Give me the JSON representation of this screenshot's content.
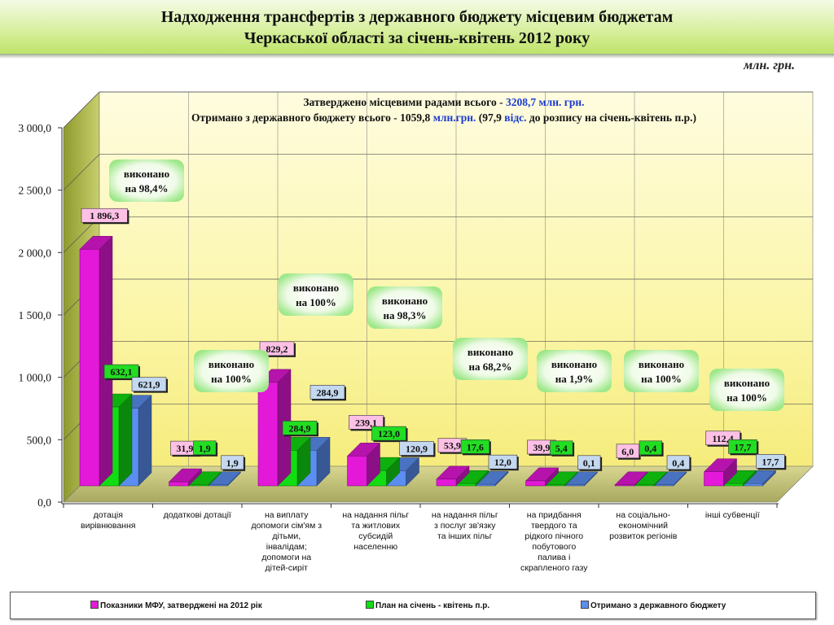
{
  "title": {
    "line1": "Надходження трансфертів з державного бюджету місцевим бюджетам",
    "line2": "Черкаської області за січень-квітень  2012 року"
  },
  "unit": "млн. грн.",
  "colors": {
    "mfu": "#e418d8",
    "plan": "#12dc12",
    "received": "#5b8ef0",
    "panel_back": "#fbf6a8",
    "label_box_mfu": "#ffc0e6",
    "label_box_plan": "#22dd22",
    "label_box_received": "#c4d8f0",
    "text_highlight": "#1a3ad0"
  },
  "info_box": {
    "line1_a": "Затверджено місцевими радами всього - ",
    "line1_b": "3208,7 млн. грн.",
    "line2_a": "Отримано  з державного бюджету всього - 1059,8 ",
    "line2_b": "млн.грн.",
    "line2_c": " (97,9 ",
    "line2_d": "відс.",
    "line2_e": " до розпису на січень-квітень п.р.)"
  },
  "chart_data": {
    "type": "bar",
    "ylim": [
      0,
      3000
    ],
    "yticks": [
      "0,0",
      "500,0",
      "1 000,0",
      "1 500,0",
      "2 000,0",
      "2 500,0",
      "3 000,0"
    ],
    "ytick_values": [
      0,
      500,
      1000,
      1500,
      2000,
      2500,
      3000
    ],
    "grid": true,
    "legend_position": "bottom",
    "categories": [
      [
        "дотація",
        "вирівнювання"
      ],
      [
        "додаткові дотації"
      ],
      [
        "на виплату",
        "допомоги сім'ям з",
        "дітьми,",
        "інвалідам;",
        "допомоги на",
        "дітей-сиріт"
      ],
      [
        "на надання пільг",
        "та житлових",
        "субсидій",
        "населенню"
      ],
      [
        "на надання пільг",
        "з послуг зв'язку",
        "та інших  пільг"
      ],
      [
        "на придбання",
        "твердого та",
        "рідкого пічного",
        "побутового",
        "палива і",
        "скрапленого газу"
      ],
      [
        "на соціально-",
        "економічний",
        "розвиток регіонів"
      ],
      [
        "інші  субвенції"
      ]
    ],
    "series": [
      {
        "name": "Показники МФУ, затверджені на 2012 рік",
        "values": [
          1896.3,
          31.9,
          829.2,
          239.1,
          53.9,
          39.9,
          6.0,
          112.4
        ],
        "labels": [
          "1 896,3",
          "31,9",
          "829,2",
          "239,1",
          "53,9",
          "39,9",
          "6,0",
          "112,4"
        ]
      },
      {
        "name": "План на січень - квітень п.р.",
        "values": [
          632.1,
          1.9,
          284.9,
          123.0,
          17.6,
          5.4,
          0.4,
          17.7
        ],
        "labels": [
          "632,1",
          "1,9",
          "284,9",
          "123,0",
          "17,6",
          "5,4",
          "0,4",
          "17,7"
        ]
      },
      {
        "name": "Отримано з державного бюджету",
        "values": [
          621.9,
          1.9,
          284.9,
          120.9,
          12.0,
          0.1,
          0.4,
          17.7
        ],
        "labels": [
          "621,9",
          "1,9",
          "284,9",
          "120,9",
          "12,0",
          "0,1",
          "0,4",
          "17,7"
        ]
      }
    ],
    "annotations": [
      {
        "category": 0,
        "line1": "виконано",
        "line2": "на 98,4%"
      },
      {
        "category": 1,
        "line1": "виконано",
        "line2": "на 100%"
      },
      {
        "category": 2,
        "line1": "виконано",
        "line2": "на 100%"
      },
      {
        "category": 3,
        "line1": "виконано",
        "line2": "на 98,3%"
      },
      {
        "category": 4,
        "line1": "виконано",
        "line2": "на 68,2%"
      },
      {
        "category": 5,
        "line1": "виконано",
        "line2": "на 1,9%"
      },
      {
        "category": 6,
        "line1": "виконано",
        "line2": "на 100%"
      },
      {
        "category": 7,
        "line1": "виконано",
        "line2": "на 100%"
      }
    ]
  }
}
